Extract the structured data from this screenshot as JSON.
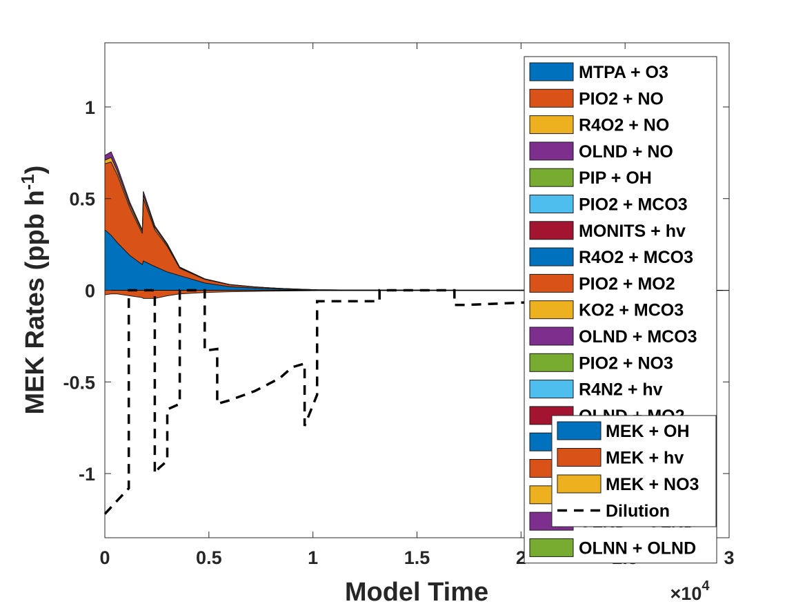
{
  "chart_data": {
    "type": "area",
    "xlabel": "Model Time",
    "ylabel": "MEK Rates (ppb h",
    "ylabel_sup": "-1",
    "ylabel_close": ")",
    "x_exponent_base": "×10",
    "x_exponent_power": "4",
    "xlim": [
      0,
      30000
    ],
    "ylim": [
      -1.35,
      1.35
    ],
    "x_tick_values": [
      0,
      5000,
      10000,
      15000,
      20000,
      25000,
      30000
    ],
    "x_tick_labels": [
      "0",
      "0.5",
      "1",
      "1.5",
      "2",
      "2.5",
      "3"
    ],
    "y_tick_values": [
      -1,
      -0.5,
      0,
      0.5,
      1
    ],
    "y_tick_labels": [
      "-1",
      "-0.5",
      "0",
      "0.5",
      "1"
    ],
    "grid": false,
    "x": [
      0,
      300,
      600,
      1200,
      1800,
      1850,
      2400,
      3000,
      3600,
      4800,
      6000,
      7200,
      8400,
      9600,
      10200,
      12000,
      15000,
      20000,
      25000,
      30000
    ],
    "series": [
      {
        "name": "MEK + OH",
        "color": "#0072BD",
        "values": [
          0.33,
          0.3,
          0.26,
          0.19,
          0.14,
          0.16,
          0.13,
          0.1,
          0.08,
          0.04,
          0.02,
          0.012,
          0.006,
          0.003,
          0.002,
          0.001,
          0.0005,
          0.0002,
          0.0001,
          0.0001
        ]
      },
      {
        "name": "MEK + hv",
        "color": "#D95319",
        "values": [
          0.36,
          0.4,
          0.37,
          0.26,
          0.17,
          0.34,
          0.2,
          0.14,
          0.04,
          0.02,
          0.01,
          0.006,
          0.004,
          0.002,
          0.001,
          0.0005,
          0.0002,
          0.0001,
          0.0,
          0.0
        ]
      },
      {
        "name": "MEK + NO3",
        "color": "#EDB120",
        "values": [
          0.02,
          0.025,
          0.02,
          0.016,
          0.012,
          0.02,
          0.012,
          0.008,
          0.004,
          0.002,
          0.001,
          0.0005,
          0.0003,
          0.0002,
          0.0001,
          0.0,
          0.0,
          0.0,
          0.0,
          0.0
        ]
      },
      {
        "name": "OLND + NO",
        "color": "#7E2F8E",
        "values": [
          0.025,
          0.03,
          0.025,
          0.015,
          0.008,
          0.02,
          0.01,
          0.006,
          0.003,
          0.001,
          0.0005,
          0.0002,
          0.0001,
          0.0,
          0.0,
          0.0,
          0.0,
          0.0,
          0.0,
          0.0
        ]
      }
    ],
    "negative_values": [
      -0.025,
      -0.02,
      -0.02,
      -0.03,
      -0.04,
      -0.045,
      -0.045,
      -0.03,
      -0.02,
      -0.012,
      -0.008,
      -0.006,
      -0.004,
      -0.003,
      -0.002,
      -0.002,
      -0.002,
      -0.002,
      -0.002,
      -0.001
    ],
    "dilution": {
      "name": "Dilution",
      "x": [
        0,
        1150,
        1150,
        1250,
        2400,
        2400,
        2600,
        3000,
        3000,
        3600,
        3600,
        4800,
        4800,
        5400,
        5400,
        6000,
        7200,
        8400,
        9000,
        9600,
        9600,
        10200,
        10200,
        13200,
        13200,
        16800,
        16800,
        17400,
        17400,
        21600,
        21600,
        22800
      ],
      "y": [
        -1.22,
        -1.08,
        0.0,
        0.0,
        0.0,
        -1.0,
        -0.97,
        -0.93,
        -0.65,
        -0.62,
        0.0,
        0.0,
        -0.33,
        -0.32,
        -0.62,
        -0.6,
        -0.55,
        -0.48,
        -0.42,
        -0.4,
        -0.74,
        -0.57,
        -0.06,
        -0.06,
        0.0,
        0.0,
        -0.08,
        -0.08,
        -0.08,
        -0.06,
        -0.03,
        0.0
      ]
    },
    "legend_main": {
      "placement": "top-right",
      "entries": [
        {
          "label": "MTPA + O3",
          "color": "#0072BD"
        },
        {
          "label": "PIO2 + NO",
          "color": "#D95319"
        },
        {
          "label": "R4O2 + NO",
          "color": "#EDB120"
        },
        {
          "label": "OLND + NO",
          "color": "#7E2F8E"
        },
        {
          "label": "PIP + OH",
          "color": "#77AC30"
        },
        {
          "label": "PIO2 + MCO3",
          "color": "#4DBEEE"
        },
        {
          "label": "MONITS + hv",
          "color": "#A2142F"
        },
        {
          "label": "R4O2 + MCO3",
          "color": "#0072BD"
        },
        {
          "label": "PIO2 + MO2",
          "color": "#D95319"
        },
        {
          "label": "KO2 + MCO3",
          "color": "#EDB120"
        },
        {
          "label": "OLND + MCO3",
          "color": "#7E2F8E"
        },
        {
          "label": "PIO2 + NO3",
          "color": "#77AC30"
        },
        {
          "label": "R4N2 + hv",
          "color": "#4DBEEE"
        },
        {
          "label": "OLND + MO2",
          "color": "#A2142F"
        },
        {
          "label": "",
          "color": "#0072BD"
        },
        {
          "label": "",
          "color": "#D95319"
        },
        {
          "label": "",
          "color": "#EDB120"
        },
        {
          "label": "OLND + OLND",
          "color": "#7E2F8E"
        },
        {
          "label": "OLNN + OLND",
          "color": "#77AC30"
        }
      ]
    },
    "legend_overlay": {
      "placement": "bottom-right",
      "entries": [
        {
          "label": "MEK + OH",
          "color": "#0072BD",
          "kind": "patch"
        },
        {
          "label": "MEK + hv",
          "color": "#D95319",
          "kind": "patch"
        },
        {
          "label": "MEK + NO3",
          "color": "#EDB120",
          "kind": "patch"
        },
        {
          "label": "Dilution",
          "color": "#000000",
          "kind": "dashed-line"
        }
      ]
    }
  }
}
